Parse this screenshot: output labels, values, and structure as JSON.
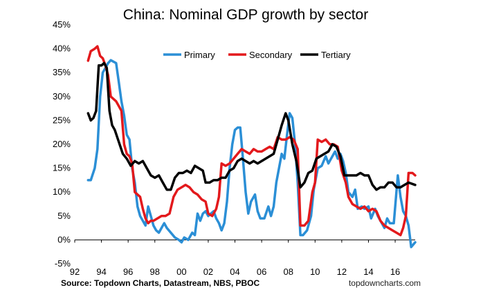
{
  "chart_data": {
    "type": "line",
    "title": "China: Nominal GDP growth by sector",
    "source": "Source: Topdown Charts, Datastream, NBS, PBOC",
    "brand": "topdowncharts.com",
    "xlabel": "",
    "ylabel": "",
    "xlim": [
      1992,
      2017.5
    ],
    "ylim": [
      -5,
      45
    ],
    "y_ticks": [
      -5,
      0,
      5,
      10,
      15,
      20,
      25,
      30,
      35,
      40,
      45
    ],
    "y_tick_labels": [
      "-5%",
      "0%",
      "5%",
      "10%",
      "15%",
      "20%",
      "25%",
      "30%",
      "35%",
      "40%",
      "45%"
    ],
    "x_ticks": [
      1992,
      1994,
      1996,
      1998,
      2000,
      2002,
      2004,
      2006,
      2008,
      2010,
      2012,
      2014,
      2016
    ],
    "x_tick_labels": [
      "92",
      "94",
      "96",
      "98",
      "00",
      "02",
      "04",
      "06",
      "08",
      "10",
      "12",
      "14",
      "16"
    ],
    "grid": false,
    "legend_position": "top-right",
    "series": [
      {
        "name": "Primary",
        "color": "#2b8fd6",
        "points": [
          [
            1993.0,
            12.5
          ],
          [
            1993.2,
            12.5
          ],
          [
            1993.5,
            15.0
          ],
          [
            1993.7,
            19.0
          ],
          [
            1993.9,
            30.0
          ],
          [
            1994.1,
            35.0
          ],
          [
            1994.3,
            36.0
          ],
          [
            1994.5,
            37.0
          ],
          [
            1994.7,
            37.6
          ],
          [
            1994.9,
            37.3
          ],
          [
            1995.1,
            37.0
          ],
          [
            1995.3,
            33.0
          ],
          [
            1995.5,
            29.0
          ],
          [
            1995.7,
            26.0
          ],
          [
            1995.9,
            22.0
          ],
          [
            1996.1,
            21.0
          ],
          [
            1996.3,
            15.0
          ],
          [
            1996.5,
            12.0
          ],
          [
            1996.7,
            7.0
          ],
          [
            1996.9,
            5.0
          ],
          [
            1997.1,
            4.0
          ],
          [
            1997.3,
            3.0
          ],
          [
            1997.5,
            7.0
          ],
          [
            1997.7,
            5.0
          ],
          [
            1997.9,
            3.0
          ],
          [
            1998.1,
            2.0
          ],
          [
            1998.3,
            1.5
          ],
          [
            1998.5,
            2.5
          ],
          [
            1998.7,
            3.5
          ],
          [
            1998.9,
            2.5
          ],
          [
            1999.2,
            1.5
          ],
          [
            1999.5,
            0.5
          ],
          [
            1999.8,
            0.0
          ],
          [
            2000.0,
            -0.5
          ],
          [
            2000.2,
            0.5
          ],
          [
            2000.5,
            0.0
          ],
          [
            2000.8,
            1.5
          ],
          [
            2001.0,
            1.0
          ],
          [
            2001.2,
            5.5
          ],
          [
            2001.4,
            4.0
          ],
          [
            2001.6,
            5.5
          ],
          [
            2001.8,
            6.0
          ],
          [
            2002.0,
            5.0
          ],
          [
            2002.2,
            5.5
          ],
          [
            2002.4,
            6.0
          ],
          [
            2002.6,
            4.5
          ],
          [
            2002.8,
            3.5
          ],
          [
            2003.0,
            2.0
          ],
          [
            2003.2,
            3.5
          ],
          [
            2003.4,
            8.0
          ],
          [
            2003.6,
            15.0
          ],
          [
            2003.8,
            20.0
          ],
          [
            2004.0,
            23.0
          ],
          [
            2004.2,
            23.5
          ],
          [
            2004.4,
            23.5
          ],
          [
            2004.6,
            17.0
          ],
          [
            2004.8,
            10.0
          ],
          [
            2005.0,
            5.5
          ],
          [
            2005.2,
            8.0
          ],
          [
            2005.5,
            9.5
          ],
          [
            2005.7,
            6.0
          ],
          [
            2005.9,
            4.5
          ],
          [
            2006.2,
            4.5
          ],
          [
            2006.5,
            7.0
          ],
          [
            2006.7,
            5.0
          ],
          [
            2006.9,
            7.0
          ],
          [
            2007.1,
            12.0
          ],
          [
            2007.3,
            15.0
          ],
          [
            2007.5,
            18.0
          ],
          [
            2007.7,
            17.0
          ],
          [
            2007.9,
            22.0
          ],
          [
            2008.1,
            26.5
          ],
          [
            2008.3,
            25.5
          ],
          [
            2008.5,
            20.0
          ],
          [
            2008.7,
            12.0
          ],
          [
            2008.9,
            1.0
          ],
          [
            2009.1,
            1.0
          ],
          [
            2009.4,
            2.0
          ],
          [
            2009.7,
            5.0
          ],
          [
            2009.9,
            10.5
          ],
          [
            2010.2,
            15.0
          ],
          [
            2010.5,
            15.5
          ],
          [
            2010.8,
            17.5
          ],
          [
            2011.0,
            16.0
          ],
          [
            2011.2,
            17.0
          ],
          [
            2011.5,
            18.5
          ],
          [
            2011.7,
            17.0
          ],
          [
            2011.9,
            18.0
          ],
          [
            2012.1,
            16.5
          ],
          [
            2012.3,
            14.0
          ],
          [
            2012.5,
            10.0
          ],
          [
            2012.8,
            9.0
          ],
          [
            2013.0,
            10.5
          ],
          [
            2013.2,
            6.5
          ],
          [
            2013.5,
            7.0
          ],
          [
            2013.7,
            6.5
          ],
          [
            2014.0,
            7.0
          ],
          [
            2014.2,
            4.5
          ],
          [
            2014.5,
            6.5
          ],
          [
            2014.7,
            5.0
          ],
          [
            2014.9,
            4.0
          ],
          [
            2015.2,
            2.5
          ],
          [
            2015.4,
            4.5
          ],
          [
            2015.6,
            3.5
          ],
          [
            2015.9,
            3.5
          ],
          [
            2016.2,
            13.5
          ],
          [
            2016.4,
            9.0
          ],
          [
            2016.6,
            6.0
          ],
          [
            2016.8,
            5.0
          ],
          [
            2017.0,
            3.0
          ],
          [
            2017.2,
            -1.5
          ],
          [
            2017.5,
            -0.5
          ]
        ]
      },
      {
        "name": "Secondary",
        "color": "#e3191c",
        "points": [
          [
            1993.0,
            37.5
          ],
          [
            1993.2,
            39.5
          ],
          [
            1993.5,
            40.0
          ],
          [
            1993.7,
            40.5
          ],
          [
            1993.9,
            38.5
          ],
          [
            1994.1,
            38.0
          ],
          [
            1994.3,
            36.5
          ],
          [
            1994.5,
            34.5
          ],
          [
            1994.7,
            30.0
          ],
          [
            1994.9,
            29.5
          ],
          [
            1995.1,
            29.0
          ],
          [
            1995.3,
            28.0
          ],
          [
            1995.5,
            27.0
          ],
          [
            1995.7,
            20.0
          ],
          [
            1995.9,
            18.0
          ],
          [
            1996.1,
            17.5
          ],
          [
            1996.3,
            16.0
          ],
          [
            1996.5,
            10.0
          ],
          [
            1996.7,
            9.5
          ],
          [
            1996.9,
            9.0
          ],
          [
            1997.1,
            6.5
          ],
          [
            1997.3,
            4.5
          ],
          [
            1997.5,
            3.5
          ],
          [
            1997.7,
            4.0
          ],
          [
            1997.9,
            4.0
          ],
          [
            1998.2,
            4.5
          ],
          [
            1998.5,
            5.0
          ],
          [
            1998.8,
            5.0
          ],
          [
            1999.1,
            5.5
          ],
          [
            1999.4,
            9.0
          ],
          [
            1999.7,
            10.5
          ],
          [
            2000.0,
            11.0
          ],
          [
            2000.3,
            11.5
          ],
          [
            2000.6,
            11.0
          ],
          [
            2000.9,
            10.0
          ],
          [
            2001.2,
            9.5
          ],
          [
            2001.5,
            8.5
          ],
          [
            2001.8,
            8.0
          ],
          [
            2002.0,
            5.5
          ],
          [
            2002.3,
            5.0
          ],
          [
            2002.6,
            6.5
          ],
          [
            2002.8,
            9.0
          ],
          [
            2003.0,
            16.0
          ],
          [
            2003.3,
            15.5
          ],
          [
            2003.6,
            16.0
          ],
          [
            2003.9,
            17.0
          ],
          [
            2004.2,
            18.0
          ],
          [
            2004.5,
            19.0
          ],
          [
            2004.8,
            18.5
          ],
          [
            2005.1,
            18.0
          ],
          [
            2005.4,
            19.0
          ],
          [
            2005.7,
            18.5
          ],
          [
            2006.0,
            18.5
          ],
          [
            2006.3,
            19.0
          ],
          [
            2006.6,
            19.5
          ],
          [
            2006.9,
            19.0
          ],
          [
            2007.2,
            21.5
          ],
          [
            2007.5,
            21.0
          ],
          [
            2007.8,
            21.0
          ],
          [
            2008.1,
            21.5
          ],
          [
            2008.4,
            21.0
          ],
          [
            2008.7,
            19.0
          ],
          [
            2008.9,
            3.0
          ],
          [
            2009.2,
            3.0
          ],
          [
            2009.5,
            4.0
          ],
          [
            2009.8,
            10.0
          ],
          [
            2010.0,
            12.0
          ],
          [
            2010.2,
            21.0
          ],
          [
            2010.5,
            20.5
          ],
          [
            2010.8,
            21.0
          ],
          [
            2011.1,
            20.0
          ],
          [
            2011.4,
            20.0
          ],
          [
            2011.7,
            19.5
          ],
          [
            2012.0,
            14.5
          ],
          [
            2012.3,
            12.0
          ],
          [
            2012.5,
            9.0
          ],
          [
            2012.8,
            7.5
          ],
          [
            2013.1,
            7.0
          ],
          [
            2013.4,
            6.5
          ],
          [
            2013.7,
            7.0
          ],
          [
            2014.0,
            6.0
          ],
          [
            2014.3,
            6.5
          ],
          [
            2014.6,
            6.0
          ],
          [
            2014.9,
            4.0
          ],
          [
            2015.2,
            3.0
          ],
          [
            2015.5,
            2.5
          ],
          [
            2015.8,
            2.0
          ],
          [
            2016.1,
            1.5
          ],
          [
            2016.4,
            1.0
          ],
          [
            2016.6,
            2.5
          ],
          [
            2016.8,
            5.0
          ],
          [
            2017.0,
            14.0
          ],
          [
            2017.3,
            14.0
          ],
          [
            2017.5,
            13.5
          ]
        ]
      },
      {
        "name": "Tertiary",
        "color": "#000000",
        "points": [
          [
            1993.0,
            26.5
          ],
          [
            1993.2,
            25.0
          ],
          [
            1993.4,
            25.5
          ],
          [
            1993.6,
            27.0
          ],
          [
            1993.8,
            36.5
          ],
          [
            1994.0,
            36.5
          ],
          [
            1994.2,
            37.0
          ],
          [
            1994.4,
            36.0
          ],
          [
            1994.6,
            27.0
          ],
          [
            1994.8,
            24.0
          ],
          [
            1995.0,
            23.0
          ],
          [
            1995.3,
            20.5
          ],
          [
            1995.6,
            18.0
          ],
          [
            1995.9,
            17.0
          ],
          [
            1996.2,
            15.5
          ],
          [
            1996.5,
            16.5
          ],
          [
            1996.8,
            16.0
          ],
          [
            1997.1,
            16.5
          ],
          [
            1997.4,
            15.0
          ],
          [
            1997.7,
            13.5
          ],
          [
            1998.0,
            13.0
          ],
          [
            1998.3,
            13.5
          ],
          [
            1998.6,
            12.0
          ],
          [
            1998.9,
            10.5
          ],
          [
            1999.2,
            10.5
          ],
          [
            1999.5,
            13.0
          ],
          [
            1999.8,
            14.0
          ],
          [
            2000.1,
            14.0
          ],
          [
            2000.4,
            14.5
          ],
          [
            2000.7,
            14.0
          ],
          [
            2001.0,
            15.5
          ],
          [
            2001.3,
            15.0
          ],
          [
            2001.6,
            14.5
          ],
          [
            2001.8,
            12.0
          ],
          [
            2002.1,
            12.0
          ],
          [
            2002.4,
            12.5
          ],
          [
            2002.7,
            12.5
          ],
          [
            2003.0,
            13.0
          ],
          [
            2003.3,
            13.0
          ],
          [
            2003.6,
            14.5
          ],
          [
            2003.9,
            15.0
          ],
          [
            2004.2,
            16.5
          ],
          [
            2004.5,
            17.0
          ],
          [
            2004.8,
            16.5
          ],
          [
            2005.1,
            16.0
          ],
          [
            2005.4,
            16.5
          ],
          [
            2005.7,
            16.0
          ],
          [
            2006.0,
            16.5
          ],
          [
            2006.3,
            17.0
          ],
          [
            2006.6,
            17.5
          ],
          [
            2006.9,
            18.0
          ],
          [
            2007.2,
            21.0
          ],
          [
            2007.5,
            24.0
          ],
          [
            2007.8,
            26.5
          ],
          [
            2008.0,
            25.0
          ],
          [
            2008.3,
            20.0
          ],
          [
            2008.6,
            16.5
          ],
          [
            2008.9,
            11.0
          ],
          [
            2009.2,
            12.0
          ],
          [
            2009.5,
            14.0
          ],
          [
            2009.8,
            14.5
          ],
          [
            2010.1,
            17.0
          ],
          [
            2010.4,
            17.5
          ],
          [
            2010.7,
            18.0
          ],
          [
            2011.0,
            18.5
          ],
          [
            2011.3,
            20.0
          ],
          [
            2011.6,
            19.5
          ],
          [
            2011.9,
            17.5
          ],
          [
            2012.2,
            13.5
          ],
          [
            2012.5,
            13.5
          ],
          [
            2012.8,
            13.5
          ],
          [
            2013.1,
            13.5
          ],
          [
            2013.4,
            14.0
          ],
          [
            2013.7,
            13.5
          ],
          [
            2014.0,
            13.5
          ],
          [
            2014.3,
            11.5
          ],
          [
            2014.6,
            10.5
          ],
          [
            2014.9,
            11.0
          ],
          [
            2015.2,
            11.0
          ],
          [
            2015.5,
            12.0
          ],
          [
            2015.8,
            12.0
          ],
          [
            2016.1,
            11.0
          ],
          [
            2016.4,
            11.0
          ],
          [
            2016.7,
            11.5
          ],
          [
            2017.0,
            12.0
          ],
          [
            2017.5,
            11.5
          ]
        ]
      }
    ]
  }
}
